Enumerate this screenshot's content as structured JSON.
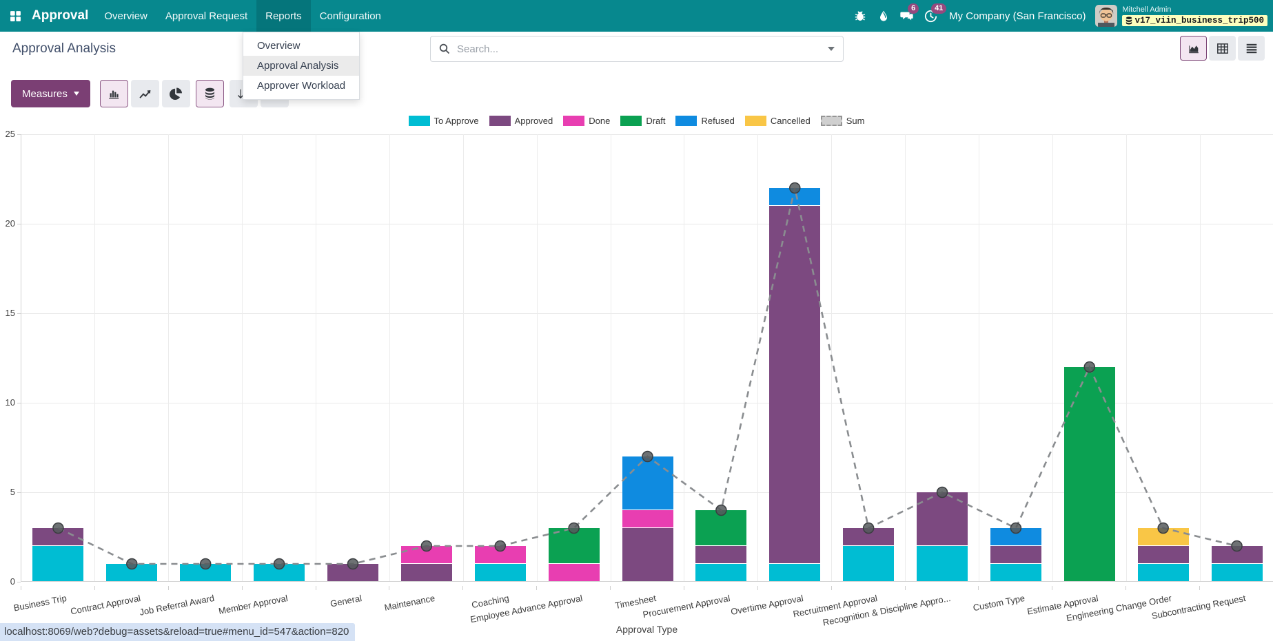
{
  "navbar": {
    "brand": "Approval",
    "items": [
      {
        "label": "Overview"
      },
      {
        "label": "Approval Request"
      },
      {
        "label": "Reports"
      },
      {
        "label": "Configuration"
      }
    ],
    "systray": {
      "message_badge": "6",
      "activity_badge": "41",
      "company": "My Company (San Francisco)",
      "user_name": "Mitchell Admin",
      "database": "v17_viin_business_trip500"
    }
  },
  "reports_menu": {
    "items": [
      {
        "label": "Overview",
        "active": false
      },
      {
        "label": "Approval Analysis",
        "active": true
      },
      {
        "label": "Approver Workload",
        "active": false
      }
    ]
  },
  "breadcrumb": {
    "title": "Approval Analysis"
  },
  "search": {
    "placeholder": "Search..."
  },
  "toolbar": {
    "measures_label": "Measures"
  },
  "statusbar": {
    "url": "localhost:8069/web?debug=assets&reload=true#menu_id=547&action=820"
  },
  "chart_data": {
    "type": "bar",
    "stacked": true,
    "title": "",
    "xlabel": "Approval Type",
    "ylabel": "",
    "ylim": [
      0,
      25
    ],
    "yticks": [
      0,
      5,
      10,
      15,
      20,
      25
    ],
    "grid": true,
    "legend_position": "top",
    "categories": [
      "Business Trip",
      "Contract Approval",
      "Job Referral Award",
      "Member Approval",
      "General",
      "Maintenance",
      "Coaching",
      "Employee Advance Approval",
      "Timesheet",
      "Procurement Approval",
      "Overtime Approval",
      "Recruitment Approval",
      "Recognition & Discipline Appro...",
      "Custom Type",
      "Estimate Approval",
      "Engineering Change Order",
      "Subcontracting Request"
    ],
    "series": [
      {
        "name": "To Approve",
        "color": "#00bdd3",
        "values": [
          2,
          1,
          1,
          1,
          0,
          0,
          1,
          0,
          0,
          1,
          1,
          2,
          2,
          1,
          0,
          1,
          1
        ]
      },
      {
        "name": "Approved",
        "color": "#7c4980",
        "values": [
          1,
          0,
          0,
          0,
          1,
          1,
          0,
          0,
          3,
          1,
          20,
          1,
          3,
          1,
          0,
          1,
          1
        ]
      },
      {
        "name": "Done",
        "color": "#e83eb1",
        "values": [
          0,
          0,
          0,
          0,
          0,
          1,
          1,
          1,
          1,
          0,
          0,
          0,
          0,
          0,
          0,
          0,
          0
        ]
      },
      {
        "name": "Draft",
        "color": "#0ba152",
        "values": [
          0,
          0,
          0,
          0,
          0,
          0,
          0,
          2,
          0,
          2,
          0,
          0,
          0,
          0,
          12,
          0,
          0
        ]
      },
      {
        "name": "Refused",
        "color": "#0f8be0",
        "values": [
          0,
          0,
          0,
          0,
          0,
          0,
          0,
          0,
          3,
          0,
          1,
          0,
          0,
          1,
          0,
          0,
          0
        ]
      },
      {
        "name": "Cancelled",
        "color": "#f9c646",
        "values": [
          0,
          0,
          0,
          0,
          0,
          0,
          0,
          0,
          0,
          0,
          0,
          0,
          0,
          0,
          0,
          1,
          0
        ]
      }
    ],
    "sum_series": {
      "name": "Sum",
      "color": "#8a8d90",
      "values": [
        3,
        1,
        1,
        1,
        1,
        2,
        2,
        3,
        7,
        4,
        22,
        3,
        5,
        3,
        12,
        3,
        2
      ]
    }
  }
}
